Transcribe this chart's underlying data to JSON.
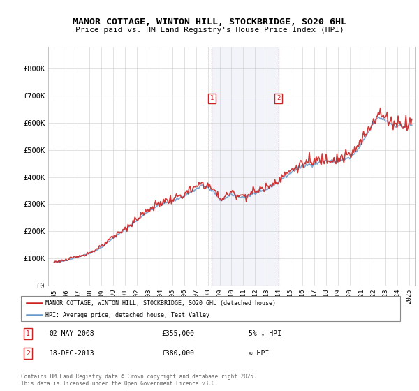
{
  "title": "MANOR COTTAGE, WINTON HILL, STOCKBRIDGE, SO20 6HL",
  "subtitle": "Price paid vs. HM Land Registry's House Price Index (HPI)",
  "legend_line1": "MANOR COTTAGE, WINTON HILL, STOCKBRIDGE, SO20 6HL (detached house)",
  "legend_line2": "HPI: Average price, detached house, Test Valley",
  "sale1_date": "02-MAY-2008",
  "sale1_price": "£355,000",
  "sale1_note": "5% ↓ HPI",
  "sale2_date": "18-DEC-2013",
  "sale2_price": "£380,000",
  "sale2_note": "≈ HPI",
  "footer": "Contains HM Land Registry data © Crown copyright and database right 2025.\nThis data is licensed under the Open Government Licence v3.0.",
  "hpi_color": "#6699cc",
  "price_color": "#cc2222",
  "marker1_x": 2008.33,
  "marker2_x": 2013.96,
  "shade_start": 2008.33,
  "shade_end": 2013.96,
  "ylim_min": 0,
  "ylim_max": 880000,
  "xlim_min": 1994.5,
  "xlim_max": 2025.5,
  "yticks": [
    0,
    100000,
    200000,
    300000,
    400000,
    500000,
    600000,
    700000,
    800000
  ],
  "ytick_labels": [
    "£0",
    "£100K",
    "£200K",
    "£300K",
    "£400K",
    "£500K",
    "£600K",
    "£700K",
    "£800K"
  ],
  "xticks": [
    1995,
    1996,
    1997,
    1998,
    1999,
    2000,
    2001,
    2002,
    2003,
    2004,
    2005,
    2006,
    2007,
    2008,
    2009,
    2010,
    2011,
    2012,
    2013,
    2014,
    2015,
    2016,
    2017,
    2018,
    2019,
    2020,
    2021,
    2022,
    2023,
    2024,
    2025
  ],
  "anchor_times": [
    1995.0,
    1996.0,
    1997.0,
    1998.0,
    1999.0,
    2000.0,
    2001.0,
    2002.0,
    2003.0,
    2004.0,
    2005.0,
    2006.0,
    2007.0,
    2007.5,
    2008.0,
    2008.5,
    2009.0,
    2009.5,
    2010.0,
    2010.5,
    2011.0,
    2011.5,
    2012.0,
    2012.5,
    2013.0,
    2013.5,
    2014.0,
    2014.5,
    2015.0,
    2015.5,
    2016.0,
    2016.5,
    2017.0,
    2017.5,
    2018.0,
    2018.5,
    2019.0,
    2019.5,
    2020.0,
    2020.5,
    2021.0,
    2021.5,
    2022.0,
    2022.5,
    2023.0,
    2023.5,
    2024.0,
    2024.5,
    2025.25
  ],
  "anchor_values": [
    85000,
    92000,
    105000,
    118000,
    140000,
    175000,
    205000,
    240000,
    275000,
    300000,
    310000,
    330000,
    355000,
    370000,
    360000,
    345000,
    315000,
    320000,
    335000,
    330000,
    325000,
    330000,
    340000,
    345000,
    355000,
    370000,
    385000,
    400000,
    415000,
    430000,
    440000,
    445000,
    450000,
    455000,
    460000,
    458000,
    460000,
    465000,
    470000,
    490000,
    520000,
    560000,
    600000,
    620000,
    610000,
    595000,
    590000,
    585000,
    590000
  ]
}
